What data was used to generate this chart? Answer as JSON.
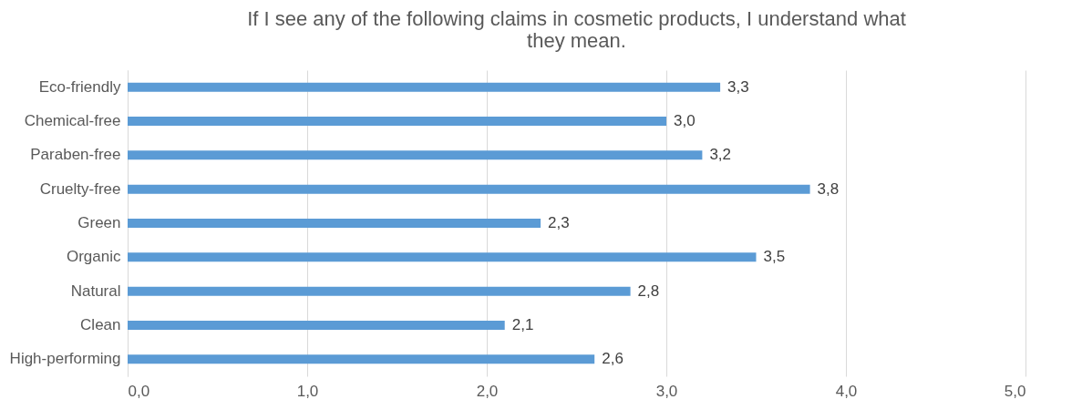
{
  "chart_data": {
    "type": "bar",
    "orientation": "horizontal",
    "title": "If I see any of the following claims in cosmetic products, I understand what they mean.",
    "categories": [
      "Eco-friendly",
      "Chemical-free",
      "Paraben-free",
      "Cruelty-free",
      "Green",
      "Organic",
      "Natural",
      "Clean",
      "High-performing"
    ],
    "values": [
      3.3,
      3.0,
      3.2,
      3.8,
      2.3,
      3.5,
      2.8,
      2.1,
      2.6
    ],
    "value_labels": [
      "3,3",
      "3,0",
      "3,2",
      "3,8",
      "2,3",
      "3,5",
      "2,8",
      "2,1",
      "2,6"
    ],
    "color": "#5b9bd5",
    "xlim": [
      0,
      5
    ],
    "xticks": [
      {
        "value": 0,
        "label": "0,0"
      },
      {
        "value": 1,
        "label": "1,0"
      },
      {
        "value": 2,
        "label": "2,0"
      },
      {
        "value": 3,
        "label": "3,0"
      },
      {
        "value": 4,
        "label": "4,0"
      },
      {
        "value": 5,
        "label": "5,0"
      }
    ],
    "grid": "x"
  }
}
